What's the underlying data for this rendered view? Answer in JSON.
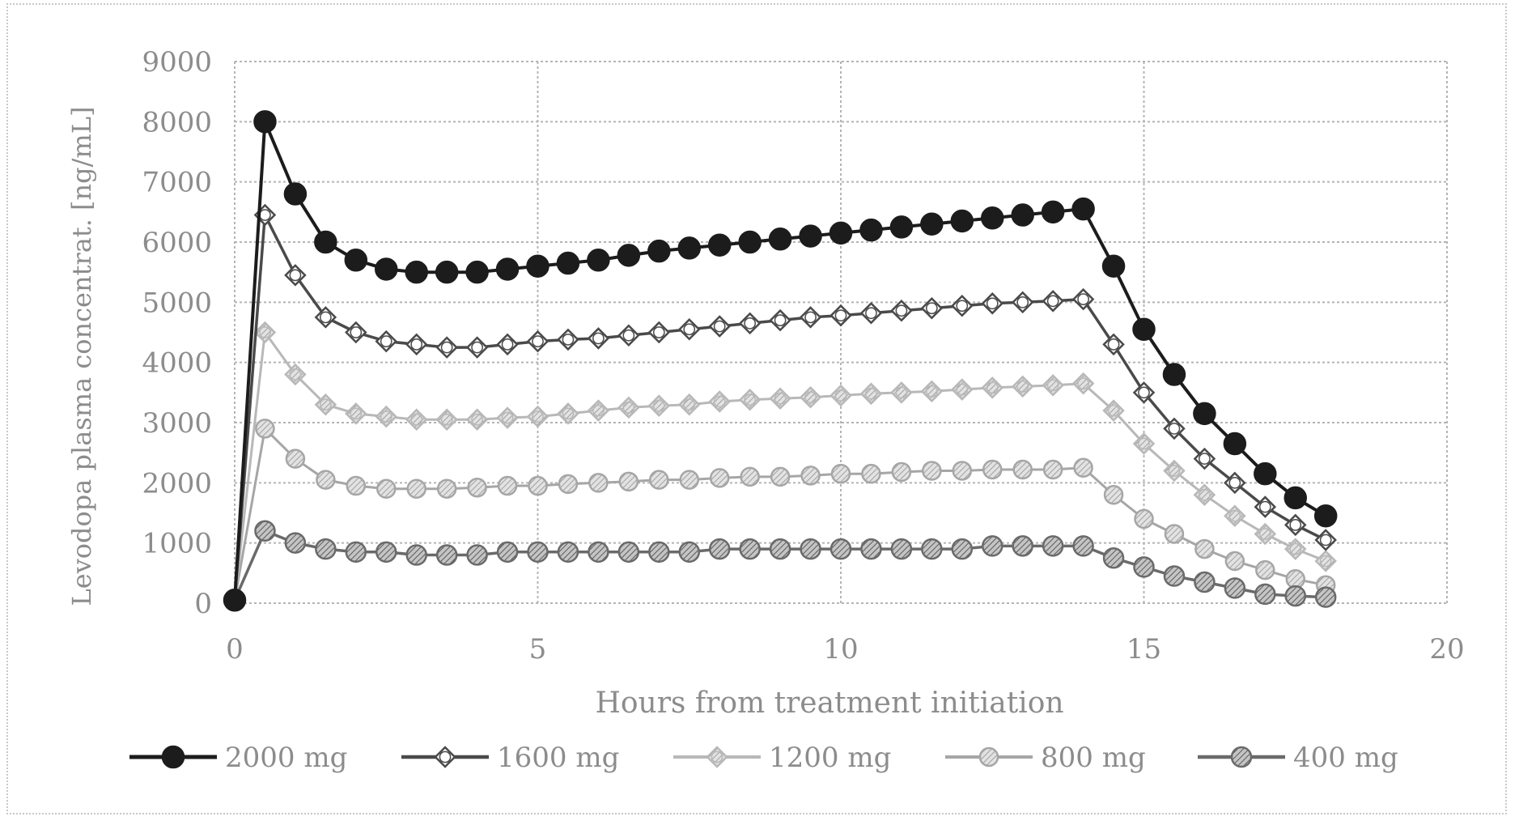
{
  "chart_data": {
    "type": "line",
    "title": "",
    "xlabel": "Hours from treatment initiation",
    "ylabel": "Levodopa plasma concentrat. [ng/mL]",
    "xlim": [
      0,
      20
    ],
    "ylim": [
      0,
      9000
    ],
    "xticks": [
      "0",
      "5",
      "10",
      "15",
      "20"
    ],
    "yticks": [
      "0",
      "1000",
      "2000",
      "3000",
      "4000",
      "5000",
      "6000",
      "7000",
      "8000",
      "9000"
    ],
    "grid": true,
    "legend_position": "bottom",
    "x": [
      0,
      0.5,
      1,
      1.5,
      2,
      2.5,
      3,
      3.5,
      4,
      4.5,
      5,
      5.5,
      6,
      6.5,
      7,
      7.5,
      8,
      8.5,
      9,
      9.5,
      10,
      10.5,
      11,
      11.5,
      12,
      12.5,
      13,
      13.5,
      14,
      14.5,
      15,
      15.5,
      16,
      16.5,
      17,
      17.5,
      18
    ],
    "series": [
      {
        "name": "2000 mg",
        "marker": "filled-dark",
        "values": [
          50,
          8000,
          6800,
          6000,
          5700,
          5550,
          5500,
          5500,
          5500,
          5550,
          5600,
          5650,
          5700,
          5780,
          5850,
          5900,
          5950,
          6000,
          6050,
          6100,
          6150,
          6200,
          6250,
          6300,
          6350,
          6400,
          6450,
          6500,
          6550,
          5600,
          4550,
          3800,
          3150,
          2650,
          2150,
          1750,
          1450
        ]
      },
      {
        "name": "1600 mg",
        "marker": "open-diamond",
        "values": [
          50,
          6450,
          5450,
          4750,
          4500,
          4350,
          4300,
          4250,
          4250,
          4300,
          4350,
          4380,
          4400,
          4450,
          4500,
          4550,
          4600,
          4650,
          4700,
          4750,
          4780,
          4820,
          4860,
          4900,
          4940,
          4980,
          5000,
          5020,
          5050,
          4300,
          3500,
          2900,
          2400,
          2000,
          1600,
          1300,
          1050
        ]
      },
      {
        "name": "1200 mg",
        "marker": "light-diamond",
        "values": [
          50,
          4500,
          3800,
          3300,
          3150,
          3100,
          3050,
          3050,
          3050,
          3080,
          3100,
          3150,
          3200,
          3250,
          3280,
          3300,
          3350,
          3380,
          3400,
          3420,
          3450,
          3480,
          3500,
          3520,
          3550,
          3580,
          3600,
          3620,
          3650,
          3200,
          2650,
          2200,
          1800,
          1450,
          1150,
          900,
          700
        ]
      },
      {
        "name": "800 mg",
        "marker": "light-circle",
        "values": [
          50,
          2900,
          2400,
          2050,
          1950,
          1900,
          1900,
          1900,
          1920,
          1950,
          1950,
          1980,
          2000,
          2020,
          2050,
          2050,
          2080,
          2100,
          2100,
          2120,
          2150,
          2150,
          2180,
          2200,
          2200,
          2220,
          2220,
          2220,
          2250,
          1800,
          1400,
          1150,
          900,
          700,
          550,
          400,
          300
        ]
      },
      {
        "name": "400 mg",
        "marker": "hatched-circle",
        "values": [
          50,
          1200,
          1000,
          900,
          850,
          850,
          800,
          800,
          800,
          850,
          850,
          850,
          850,
          850,
          850,
          850,
          900,
          900,
          900,
          900,
          900,
          900,
          900,
          900,
          900,
          950,
          950,
          950,
          950,
          750,
          600,
          450,
          350,
          250,
          150,
          120,
          100
        ]
      }
    ],
    "colors": {
      "s2000": "#1c1c1c",
      "s1600": "#4a4a4a",
      "s1200": "#b8b8b8",
      "s800": "#a6a6a6",
      "s400": "#6a6a6a",
      "grid": "#b4b4b4",
      "text": "#8c8c8c"
    }
  }
}
